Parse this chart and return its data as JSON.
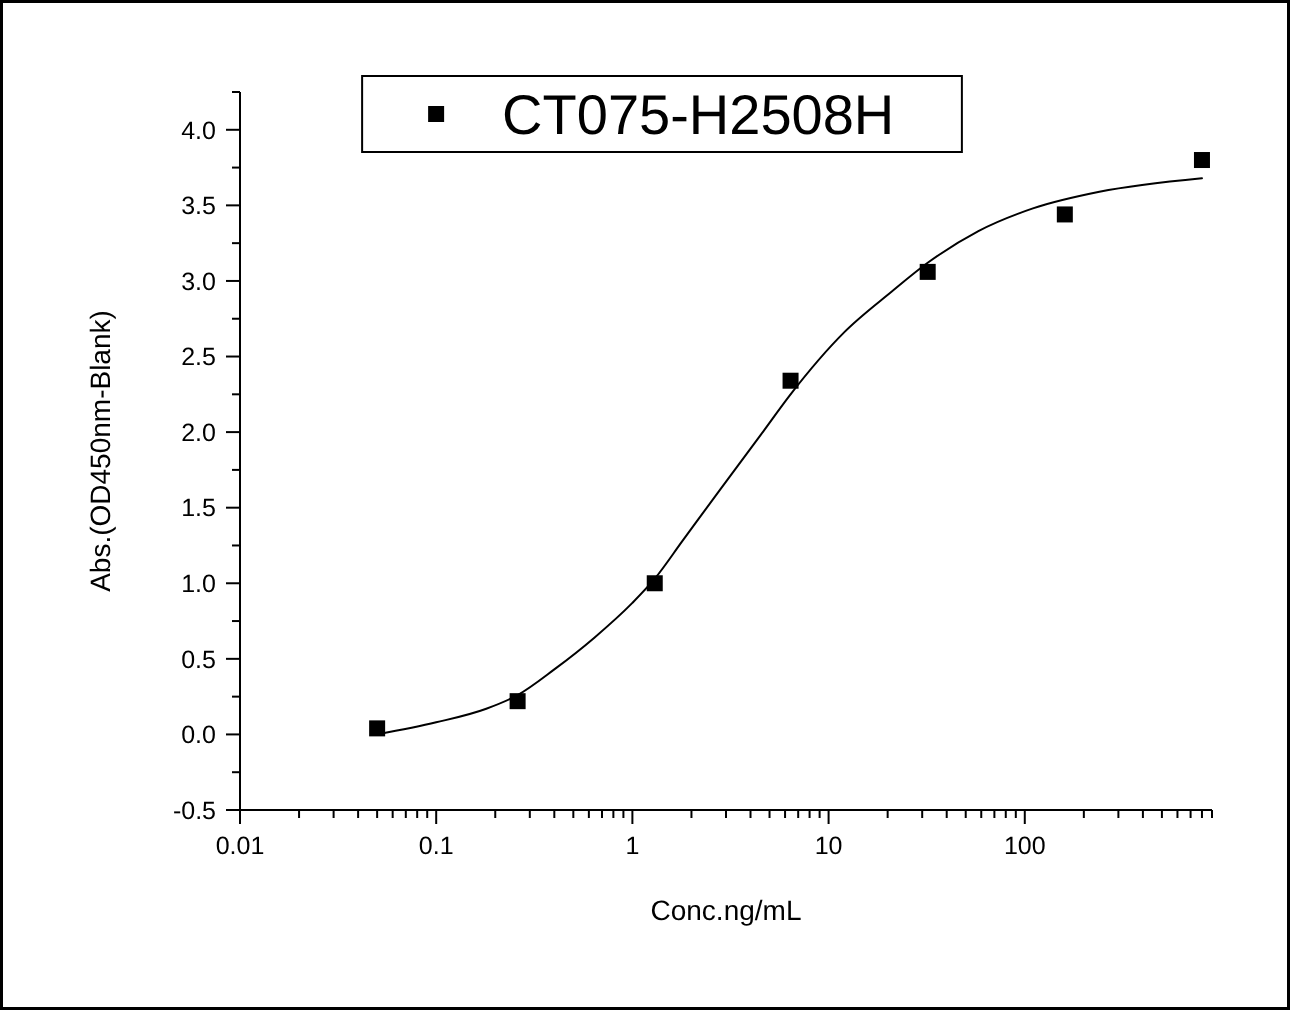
{
  "chart_data": {
    "type": "scatter",
    "xlabel": "Conc.ng/mL",
    "ylabel": "Abs.(OD450nm-Blank)",
    "log": "x",
    "marker": "square",
    "legend": "top",
    "xlim": [
      0.01,
      900
    ],
    "ylim": [
      -0.5,
      4.25
    ],
    "xticks": [
      0.01,
      {
        "value": 0.02,
        "label": null
      },
      {
        "value": 0.03,
        "label": null
      },
      {
        "value": 0.04,
        "label": null
      },
      {
        "value": 0.05,
        "label": null
      },
      {
        "value": 0.06,
        "label": null
      },
      {
        "value": 0.07,
        "label": null
      },
      {
        "value": 0.08,
        "label": null
      },
      {
        "value": 0.09,
        "label": null
      },
      0.1,
      {
        "value": 0.2,
        "label": null
      },
      {
        "value": 0.3,
        "label": null
      },
      {
        "value": 0.4,
        "label": null
      },
      {
        "value": 0.5,
        "label": null
      },
      {
        "value": 0.6,
        "label": null
      },
      {
        "value": 0.7,
        "label": null
      },
      {
        "value": 0.8,
        "label": null
      },
      {
        "value": 0.9,
        "label": null
      },
      1,
      {
        "value": 2,
        "label": null
      },
      {
        "value": 3,
        "label": null
      },
      {
        "value": 4,
        "label": null
      },
      {
        "value": 5,
        "label": null
      },
      {
        "value": 6,
        "label": null
      },
      {
        "value": 7,
        "label": null
      },
      {
        "value": 8,
        "label": null
      },
      {
        "value": 9,
        "label": null
      },
      10,
      {
        "value": 20,
        "label": null
      },
      {
        "value": 30,
        "label": null
      },
      {
        "value": 40,
        "label": null
      },
      {
        "value": 50,
        "label": null
      },
      {
        "value": 60,
        "label": null
      },
      {
        "value": 70,
        "label": null
      },
      {
        "value": 80,
        "label": null
      },
      {
        "value": 90,
        "label": null
      },
      100,
      {
        "value": 200,
        "label": null
      },
      {
        "value": 300,
        "label": null
      },
      {
        "value": 400,
        "label": null
      },
      {
        "value": 500,
        "label": null
      },
      {
        "value": 600,
        "label": null
      },
      {
        "value": 700,
        "label": null
      },
      {
        "value": 800,
        "label": null
      },
      {
        "value": 900,
        "label": null
      }
    ],
    "yticks": [
      {
        "value": -0.5,
        "label": "-0.5"
      },
      {
        "value": -0.25,
        "label": null
      },
      {
        "value": 0,
        "label": "0.0"
      },
      {
        "value": 0.25,
        "label": null
      },
      {
        "value": 0.5,
        "label": "0.5"
      },
      {
        "value": 0.75,
        "label": null
      },
      {
        "value": 1,
        "label": "1.0"
      },
      {
        "value": 1.25,
        "label": null
      },
      {
        "value": 1.5,
        "label": "1.5"
      },
      {
        "value": 1.75,
        "label": null
      },
      {
        "value": 2,
        "label": "2.0"
      },
      {
        "value": 2.25,
        "label": null
      },
      {
        "value": 2.5,
        "label": "2.5"
      },
      {
        "value": 2.75,
        "label": null
      },
      {
        "value": 3,
        "label": "3.0"
      },
      {
        "value": 3.25,
        "label": null
      },
      {
        "value": 3.5,
        "label": "3.5"
      },
      {
        "value": 3.75,
        "label": null
      },
      {
        "value": 4,
        "label": "4.0"
      },
      {
        "value": 4.25,
        "label": null
      }
    ],
    "series": [
      {
        "name": "CT075-H2508H",
        "color": "#000000",
        "x": [
          0.05,
          0.26,
          1.3,
          6.4,
          32,
          160,
          800
        ],
        "values": [
          0.04,
          0.22,
          1.0,
          2.34,
          3.06,
          3.44,
          3.8
        ]
      },
      {
        "type": "line",
        "marker": "none",
        "color": "#000000",
        "x": [
          0.05,
          0.1,
          0.18,
          0.26,
          0.4,
          0.64,
          1,
          1.3,
          1.8,
          2.8,
          4.5,
          6.4,
          12,
          21,
          32,
          58,
          110,
          240,
          800
        ],
        "values": [
          0,
          0.08,
          0.17,
          0.26,
          0.43,
          0.64,
          0.87,
          1.03,
          1.28,
          1.62,
          1.98,
          2.25,
          2.66,
          2.93,
          3.12,
          3.33,
          3.48,
          3.59,
          3.68
        ]
      }
    ]
  }
}
